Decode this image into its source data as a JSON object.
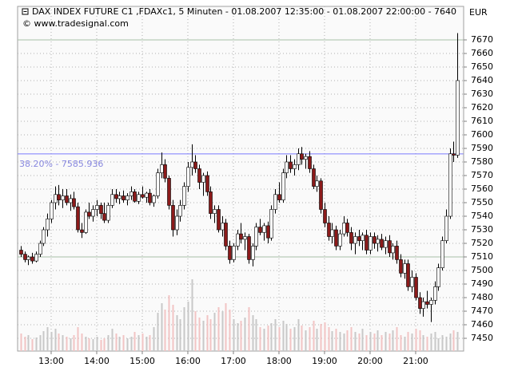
{
  "chart_data": {
    "type": "candlestick",
    "title": "DAX INDEX FUTURE C1 ,FDAXc1, 5 Minuten - 01.08.2007 12:35:00 - 01.08.2007 22:00:00 - 7640",
    "subtitle": "© www.tradesignal.com",
    "y_unit": "EUR",
    "x": [
      740,
      745,
      750,
      755,
      760,
      765,
      770,
      775,
      780,
      785,
      790,
      795,
      800,
      805,
      810,
      815,
      820,
      825,
      830,
      835,
      840,
      845,
      850,
      855,
      860,
      865,
      870,
      875,
      880,
      885,
      890,
      895,
      900,
      905,
      910,
      915,
      920,
      925,
      930,
      935,
      940,
      945,
      950,
      955,
      960,
      965,
      970,
      975,
      980,
      985,
      990,
      995,
      1000,
      1005,
      1010,
      1015,
      1020,
      1025,
      1030,
      1035,
      1040,
      1045,
      1050,
      1055,
      1060,
      1065,
      1070,
      1075,
      1080,
      1085,
      1090,
      1095,
      1100,
      1105,
      1110,
      1115,
      1120,
      1125,
      1130,
      1135,
      1140,
      1145,
      1150,
      1155,
      1160,
      1165,
      1170,
      1175,
      1180,
      1185,
      1190,
      1195,
      1200,
      1205,
      1210,
      1215,
      1220,
      1225,
      1230,
      1235,
      1240,
      1245,
      1250,
      1255,
      1260,
      1265,
      1270,
      1275,
      1280,
      1285,
      1290,
      1295,
      1300,
      1305,
      1310,
      1315
    ],
    "candles": [
      [
        7515,
        7518,
        7510,
        7512
      ],
      [
        7512,
        7514,
        7506,
        7508
      ],
      [
        7508,
        7511,
        7504,
        7510
      ],
      [
        7510,
        7513,
        7505,
        7507
      ],
      [
        7507,
        7514,
        7506,
        7512
      ],
      [
        7512,
        7522,
        7510,
        7520
      ],
      [
        7520,
        7532,
        7518,
        7530
      ],
      [
        7530,
        7542,
        7525,
        7538
      ],
      [
        7538,
        7552,
        7535,
        7550
      ],
      [
        7550,
        7562,
        7545,
        7556
      ],
      [
        7556,
        7563,
        7548,
        7552
      ],
      [
        7552,
        7560,
        7546,
        7555
      ],
      [
        7555,
        7560,
        7548,
        7550
      ],
      [
        7550,
        7556,
        7544,
        7553
      ],
      [
        7553,
        7558,
        7545,
        7547
      ],
      [
        7547,
        7550,
        7528,
        7530
      ],
      [
        7530,
        7535,
        7524,
        7528
      ],
      [
        7528,
        7545,
        7527,
        7543
      ],
      [
        7543,
        7550,
        7538,
        7540
      ],
      [
        7540,
        7548,
        7536,
        7545
      ],
      [
        7545,
        7552,
        7540,
        7548
      ],
      [
        7548,
        7550,
        7538,
        7542
      ],
      [
        7542,
        7550,
        7535,
        7537
      ],
      [
        7537,
        7550,
        7535,
        7548
      ],
      [
        7548,
        7560,
        7546,
        7556
      ],
      [
        7556,
        7560,
        7550,
        7553
      ],
      [
        7553,
        7558,
        7549,
        7555
      ],
      [
        7555,
        7559,
        7550,
        7552
      ],
      [
        7552,
        7557,
        7548,
        7555
      ],
      [
        7555,
        7562,
        7552,
        7558
      ],
      [
        7558,
        7560,
        7550,
        7551
      ],
      [
        7551,
        7558,
        7549,
        7556
      ],
      [
        7556,
        7562,
        7553,
        7554
      ],
      [
        7554,
        7558,
        7550,
        7557
      ],
      [
        7557,
        7560,
        7548,
        7550
      ],
      [
        7550,
        7556,
        7547,
        7555
      ],
      [
        7555,
        7575,
        7553,
        7572
      ],
      [
        7572,
        7587,
        7568,
        7578
      ],
      [
        7578,
        7582,
        7565,
        7568
      ],
      [
        7568,
        7570,
        7545,
        7548
      ],
      [
        7548,
        7552,
        7525,
        7530
      ],
      [
        7530,
        7545,
        7526,
        7540
      ],
      [
        7540,
        7552,
        7536,
        7548
      ],
      [
        7548,
        7565,
        7545,
        7562
      ],
      [
        7562,
        7580,
        7558,
        7576
      ],
      [
        7576,
        7593,
        7570,
        7580
      ],
      [
        7580,
        7585,
        7572,
        7575
      ],
      [
        7575,
        7578,
        7560,
        7565
      ],
      [
        7565,
        7572,
        7555,
        7570
      ],
      [
        7570,
        7573,
        7555,
        7558
      ],
      [
        7558,
        7562,
        7538,
        7542
      ],
      [
        7542,
        7548,
        7535,
        7545
      ],
      [
        7545,
        7548,
        7528,
        7530
      ],
      [
        7530,
        7540,
        7525,
        7535
      ],
      [
        7535,
        7538,
        7515,
        7518
      ],
      [
        7518,
        7522,
        7505,
        7508
      ],
      [
        7508,
        7520,
        7506,
        7518
      ],
      [
        7518,
        7530,
        7515,
        7527
      ],
      [
        7527,
        7535,
        7520,
        7523
      ],
      [
        7523,
        7528,
        7515,
        7525
      ],
      [
        7525,
        7527,
        7505,
        7508
      ],
      [
        7508,
        7520,
        7503,
        7518
      ],
      [
        7518,
        7535,
        7515,
        7532
      ],
      [
        7532,
        7538,
        7526,
        7528
      ],
      [
        7528,
        7535,
        7522,
        7533
      ],
      [
        7533,
        7536,
        7520,
        7524
      ],
      [
        7524,
        7548,
        7522,
        7545
      ],
      [
        7545,
        7560,
        7542,
        7556
      ],
      [
        7556,
        7565,
        7550,
        7552
      ],
      [
        7552,
        7575,
        7550,
        7572
      ],
      [
        7572,
        7585,
        7568,
        7580
      ],
      [
        7580,
        7585,
        7572,
        7575
      ],
      [
        7575,
        7582,
        7570,
        7578
      ],
      [
        7578,
        7590,
        7574,
        7586
      ],
      [
        7586,
        7591,
        7578,
        7582
      ],
      [
        7582,
        7586,
        7575,
        7584
      ],
      [
        7584,
        7588,
        7572,
        7575
      ],
      [
        7575,
        7578,
        7560,
        7562
      ],
      [
        7562,
        7570,
        7558,
        7566
      ],
      [
        7566,
        7568,
        7542,
        7545
      ],
      [
        7545,
        7550,
        7532,
        7535
      ],
      [
        7535,
        7540,
        7522,
        7525
      ],
      [
        7525,
        7535,
        7520,
        7530
      ],
      [
        7530,
        7533,
        7515,
        7518
      ],
      [
        7518,
        7530,
        7515,
        7527
      ],
      [
        7527,
        7540,
        7525,
        7535
      ],
      [
        7535,
        7538,
        7525,
        7528
      ],
      [
        7528,
        7532,
        7515,
        7520
      ],
      [
        7520,
        7528,
        7512,
        7525
      ],
      [
        7525,
        7530,
        7518,
        7522
      ],
      [
        7522,
        7528,
        7515,
        7526
      ],
      [
        7526,
        7530,
        7512,
        7515
      ],
      [
        7515,
        7528,
        7512,
        7525
      ],
      [
        7525,
        7528,
        7516,
        7520
      ],
      [
        7520,
        7526,
        7514,
        7523
      ],
      [
        7523,
        7527,
        7515,
        7517
      ],
      [
        7517,
        7525,
        7512,
        7522
      ],
      [
        7522,
        7526,
        7510,
        7513
      ],
      [
        7513,
        7520,
        7508,
        7518
      ],
      [
        7518,
        7522,
        7505,
        7508
      ],
      [
        7508,
        7512,
        7495,
        7498
      ],
      [
        7498,
        7508,
        7494,
        7505
      ],
      [
        7505,
        7508,
        7485,
        7488
      ],
      [
        7488,
        7500,
        7484,
        7495
      ],
      [
        7495,
        7498,
        7478,
        7480
      ],
      [
        7480,
        7484,
        7468,
        7472
      ],
      [
        7472,
        7480,
        7466,
        7477
      ],
      [
        7477,
        7485,
        7472,
        7475
      ],
      [
        7475,
        7480,
        7462,
        7478
      ],
      [
        7478,
        7492,
        7475,
        7488
      ],
      [
        7488,
        7505,
        7485,
        7502
      ],
      [
        7502,
        7525,
        7500,
        7522
      ],
      [
        7522,
        7545,
        7520,
        7540
      ],
      [
        7540,
        7590,
        7538,
        7586
      ],
      [
        7586,
        7595,
        7580,
        7585
      ],
      [
        7585,
        7675,
        7583,
        7640
      ]
    ],
    "volume": [
      22,
      18,
      20,
      15,
      17,
      20,
      25,
      30,
      24,
      28,
      22,
      20,
      18,
      16,
      20,
      30,
      22,
      18,
      16,
      15,
      18,
      14,
      16,
      20,
      28,
      22,
      18,
      20,
      16,
      18,
      24,
      20,
      22,
      18,
      20,
      30,
      48,
      60,
      52,
      70,
      58,
      45,
      40,
      55,
      62,
      90,
      50,
      42,
      38,
      45,
      40,
      48,
      55,
      50,
      60,
      52,
      40,
      35,
      38,
      42,
      55,
      45,
      40,
      30,
      28,
      32,
      35,
      40,
      30,
      38,
      34,
      28,
      30,
      40,
      32,
      26,
      30,
      38,
      28,
      34,
      36,
      30,
      25,
      28,
      24,
      22,
      26,
      30,
      24,
      22,
      28,
      20,
      24,
      22,
      26,
      20,
      24,
      22,
      26,
      30,
      20,
      18,
      24,
      22,
      28,
      26,
      20,
      18,
      22,
      24,
      16,
      20,
      18,
      22,
      26,
      24
    ],
    "up_color": "#ffffff",
    "down_color": "#8b1a1a",
    "up_volume_color": "#c8c8c8",
    "down_volume_color": "#f2c4c4",
    "xlim": [
      735.8,
      1323.2
    ],
    "xticks": [
      {
        "value": 780,
        "label": "13:00"
      },
      {
        "value": 840,
        "label": "14:00"
      },
      {
        "value": 900,
        "label": "15:00"
      },
      {
        "value": 960,
        "label": "16:00"
      },
      {
        "value": 1020,
        "label": "17:00"
      },
      {
        "value": 1080,
        "label": "18:00"
      },
      {
        "value": 1140,
        "label": "19:00"
      },
      {
        "value": 1200,
        "label": "20:00"
      },
      {
        "value": 1260,
        "label": "21:00"
      }
    ],
    "ylim": [
      7440.6,
      7694.7
    ],
    "yticks": [
      7450,
      7460,
      7470,
      7480,
      7490,
      7500,
      7510,
      7520,
      7530,
      7540,
      7550,
      7560,
      7570,
      7580,
      7590,
      7600,
      7610,
      7620,
      7630,
      7640,
      7650,
      7660,
      7670
    ],
    "hlines": [
      7670,
      7510
    ],
    "fib_line": {
      "value": 7585.936,
      "label": "38.20% - 7585.936"
    },
    "grid": true
  }
}
